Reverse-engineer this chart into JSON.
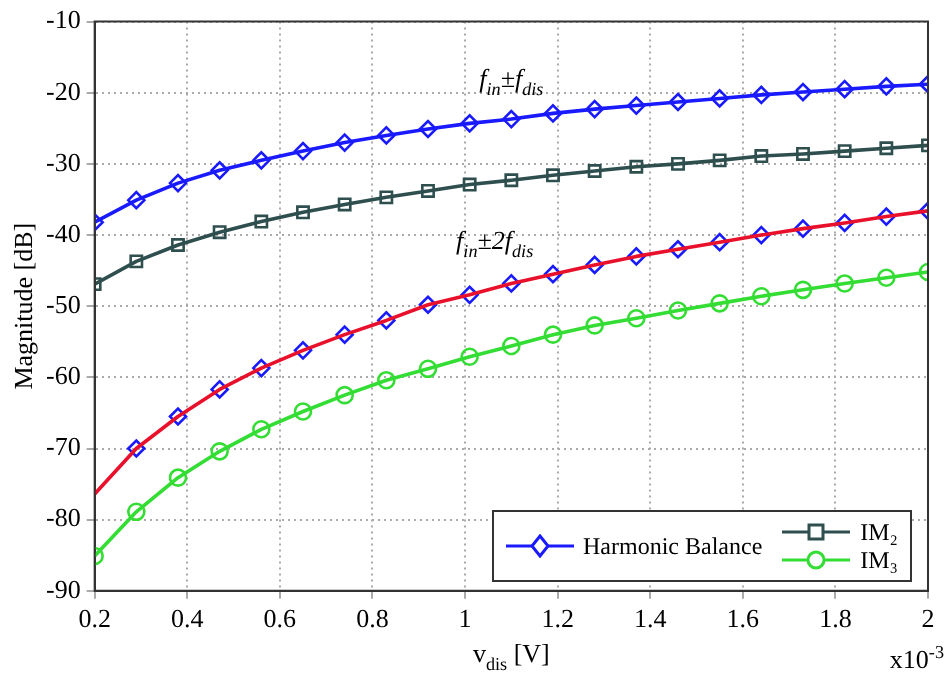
{
  "chart_data": {
    "type": "line",
    "xlabel": "v$_{dis}$ [V]",
    "ylabel": "Magnitude [dB]",
    "x": [
      0.2,
      0.29,
      0.38,
      0.47,
      0.56,
      0.65,
      0.74,
      0.83,
      0.92,
      1.01,
      1.1,
      1.19,
      1.28,
      1.37,
      1.46,
      1.55,
      1.64,
      1.73,
      1.82,
      1.91,
      2.0
    ],
    "xlim": [
      0.2,
      2
    ],
    "xticks": [
      0.2,
      0.4,
      0.6,
      0.8,
      1,
      1.2,
      1.4,
      1.6,
      1.8,
      2
    ],
    "ylim": [
      -90,
      -10
    ],
    "yticks": [
      -90,
      -80,
      -70,
      -60,
      -50,
      -40,
      -30,
      -20,
      -10
    ],
    "grid": true,
    "legend": "bottom right",
    "line_style": "solid",
    "series": [
      {
        "color": "#1a1aff",
        "marker": "diamond",
        "values": [
          -38.2,
          -35.1,
          -32.7,
          -30.9,
          -29.5,
          -28.2,
          -27.0,
          -26.0,
          -25.1,
          -24.3,
          -23.7,
          -22.9,
          -22.3,
          -21.8,
          -21.3,
          -20.8,
          -20.3,
          -19.9,
          -19.5,
          -19.1,
          -18.8
        ]
      },
      {
        "name": "IM₂",
        "color": "#2f4f4f",
        "marker": "square",
        "values": [
          -46.9,
          -43.7,
          -41.4,
          -39.6,
          -38.1,
          -36.8,
          -35.7,
          -34.7,
          -33.8,
          -32.9,
          -32.3,
          -31.6,
          -31.0,
          -30.4,
          -30.0,
          -29.5,
          -28.9,
          -28.6,
          -28.2,
          -27.8,
          -27.4
        ]
      },
      {
        "color": "#e8102a",
        "marker": "none",
        "values": [
          -76.4,
          -70.0,
          -65.5,
          -61.7,
          -58.7,
          -56.2,
          -54.0,
          -52.0,
          -49.8,
          -48.4,
          -46.8,
          -45.5,
          -44.2,
          -43.0,
          -42.0,
          -41.0,
          -40.0,
          -39.1,
          -38.3,
          -37.4,
          -36.6
        ]
      },
      {
        "type": "scatter",
        "name": "Harmonic Balance",
        "color": "#1a1aff",
        "marker": "diamond",
        "x": [
          0.29,
          0.38,
          0.47,
          0.56,
          0.65,
          0.74,
          0.83,
          0.92,
          1.01,
          1.1,
          1.19,
          1.28,
          1.37,
          1.46,
          1.55,
          1.64,
          1.73,
          1.82,
          1.91,
          2.0
        ],
        "values": [
          -70.0,
          -65.5,
          -61.7,
          -58.7,
          -56.2,
          -54.0,
          -52.0,
          -49.8,
          -48.4,
          -46.8,
          -45.5,
          -44.2,
          -43.0,
          -42.0,
          -41.0,
          -40.0,
          -39.1,
          -38.3,
          -37.4,
          -36.6
        ]
      },
      {
        "name": "IM₃",
        "color": "#33dd33",
        "marker": "circle",
        "values": [
          -85.1,
          -78.9,
          -74.1,
          -70.4,
          -67.3,
          -64.8,
          -62.5,
          -60.4,
          -58.8,
          -57.1,
          -55.6,
          -54.0,
          -52.7,
          -51.7,
          -50.6,
          -49.6,
          -48.6,
          -47.7,
          -46.8,
          -46.0,
          -45.2
        ]
      }
    ],
    "annotations": [
      {
        "text": "f$_{in}$±f$_{dis}$",
        "x": 1.1,
        "y": -21.5
      },
      "f$_{in}$±2f$_{dis}$",
      "x10$^{-3}$"
    ]
  }
}
